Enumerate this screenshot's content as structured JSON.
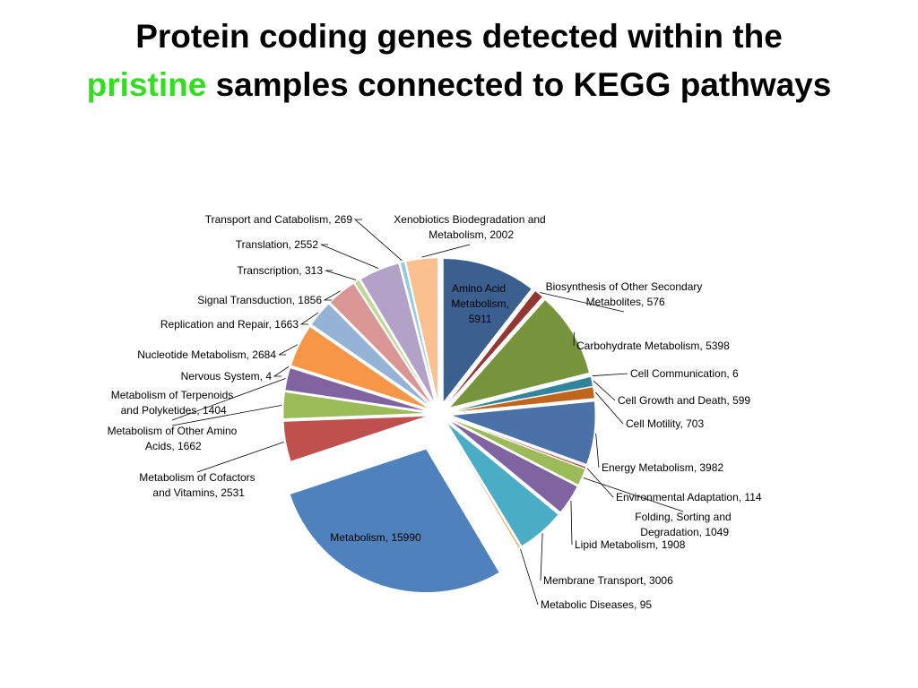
{
  "chart_data": {
    "type": "pie",
    "title_start": "Protein coding genes detected within the",
    "title_highlight": "pristine",
    "title_end": "samples connected to KEGG pathways",
    "values": [
      5911,
      576,
      5398,
      6,
      599,
      703,
      3982,
      114,
      1049,
      1908,
      3006,
      95,
      15990,
      2531,
      1662,
      1404,
      4,
      2684,
      1663,
      1856,
      313,
      2552,
      269,
      2002
    ],
    "value_labels": [
      "Amino Acid Metabolism, 5911",
      "Biosynthesis of Other Secondary Metabolites, 576",
      "Carbohydrate Metabolism, 5398",
      "Cell Communication, 6",
      "Cell Growth and Death, 599",
      "Cell Motility, 703",
      "Energy Metabolism, 3982",
      "Environmental Adaptation, 114",
      "Folding, Sorting and Degradation, 1049",
      "Lipid Metabolism, 1908",
      "Membrane Transport, 3006",
      "Metabolic Diseases, 95",
      "Metabolism, 15990",
      "Metabolism of Cofactors and Vitamins, 2531",
      "Metabolism of Other Amino Acids, 1662",
      "Metabolism of Terpenoids and Polyketides, 1404",
      "Nervous System, 4",
      "Nucleotide Metabolism, 2684",
      "Replication and Repair, 1663",
      "Signal Transduction, 1856",
      "Transcription, 313",
      "Translation, 2552",
      "Transport and Catabolism, 269",
      "Xenobiotics Biodegradation and Metabolism, 2002"
    ],
    "colors": [
      "#3b5f8f",
      "#943634",
      "#77933c",
      "#5b9bd5",
      "#31849b",
      "#c0651d",
      "#4a72a8",
      "#c0504d",
      "#9bbb59",
      "#8064a2",
      "#4bacc6",
      "#f79646",
      "#4f81bd",
      "#c0504d",
      "#9bbb59",
      "#8064a2",
      "#4bacc6",
      "#f79646",
      "#95b3d7",
      "#d99694",
      "#c3d69b",
      "#b2a2c7",
      "#93cddd",
      "#fac090"
    ],
    "highlight_color": "#33dd22"
  }
}
